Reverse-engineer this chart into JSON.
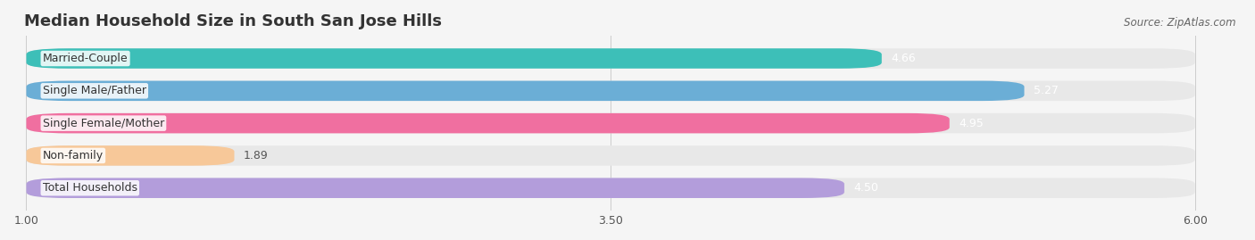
{
  "title": "Median Household Size in South San Jose Hills",
  "source": "Source: ZipAtlas.com",
  "categories": [
    "Married-Couple",
    "Single Male/Father",
    "Single Female/Mother",
    "Non-family",
    "Total Households"
  ],
  "values": [
    4.66,
    5.27,
    4.95,
    1.89,
    4.5
  ],
  "bar_colors": [
    "#3dbfb8",
    "#6baed6",
    "#f06fa0",
    "#f7c899",
    "#b39ddb"
  ],
  "value_colors": [
    "#ffffff",
    "#ffffff",
    "#ffffff",
    "#555555",
    "#ffffff"
  ],
  "xmin": 1.0,
  "xmax": 6.0,
  "xticks": [
    1.0,
    3.5,
    6.0
  ],
  "bar_height": 0.62,
  "background_color": "#f5f5f5",
  "bar_bg_color": "#e8e8e8",
  "title_fontsize": 13,
  "label_fontsize": 9,
  "value_fontsize": 9,
  "source_fontsize": 8.5
}
